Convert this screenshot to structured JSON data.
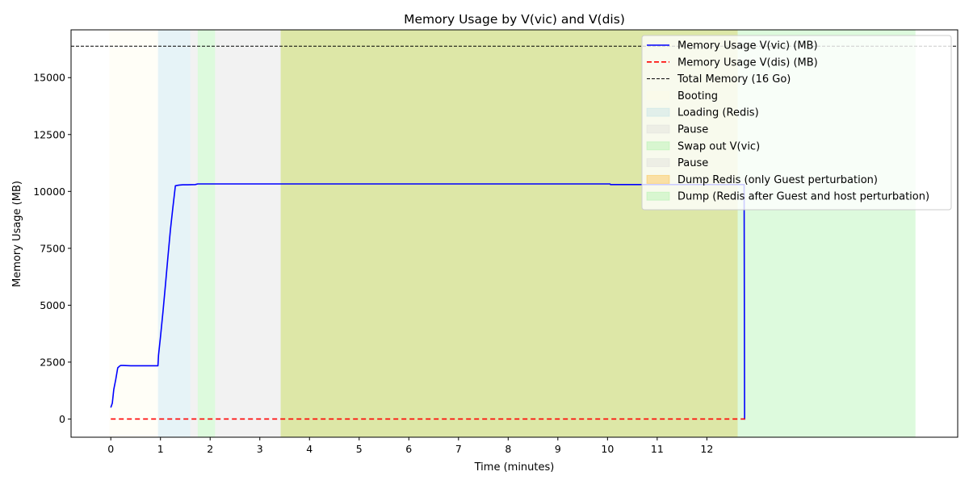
{
  "chart_data": {
    "type": "line",
    "title": "Memory Usage by V(vic) and V(dis)",
    "xlabel": "Time (minutes)",
    "ylabel": "Memory Usage (MB)",
    "xlim": [
      -0.8,
      17.05
    ],
    "ylim": [
      -800,
      17100
    ],
    "xticks": [
      0,
      1,
      2,
      3,
      4,
      5,
      6,
      7,
      8,
      9,
      10,
      11,
      12
    ],
    "xtick_labels": [
      "0",
      "1",
      "2",
      "3",
      "4",
      "5",
      "6",
      "7",
      "8",
      "9",
      "10",
      "11",
      "12"
    ],
    "yticks": [
      0,
      2500,
      5000,
      7500,
      10000,
      12500,
      15000
    ],
    "ytick_labels": [
      "0",
      "2500",
      "5000",
      "7500",
      "10000",
      "12500",
      "15000"
    ],
    "legend_position": "top-right",
    "grid": false,
    "series": [
      {
        "name": "Memory Usage V(vic) (MB)",
        "color": "#0000ff",
        "style": "solid",
        "x": [
          0,
          0.03,
          0.06,
          0.1,
          0.14,
          0.18,
          0.2,
          0.25,
          0.4,
          0.6,
          0.95,
          0.96,
          1.0,
          1.05,
          1.1,
          1.15,
          1.2,
          1.25,
          1.3,
          1.35,
          1.38,
          1.45,
          1.55,
          1.7,
          1.75,
          2.0,
          5.0,
          8.0,
          10.05,
          10.06,
          11.0,
          12.5,
          12.75,
          12.76,
          12.77
        ],
        "y": [
          500,
          700,
          1300,
          1750,
          2250,
          2330,
          2350,
          2350,
          2340,
          2340,
          2340,
          2800,
          3600,
          4700,
          5900,
          7100,
          8300,
          9300,
          10250,
          10270,
          10280,
          10290,
          10290,
          10300,
          10330,
          10330,
          10330,
          10330,
          10330,
          10300,
          10300,
          10300,
          10300,
          0,
          0
        ]
      },
      {
        "name": "Memory Usage V(dis) (MB)",
        "color": "#ff0000",
        "style": "dashed",
        "x": [
          0,
          12.77
        ],
        "y": [
          0,
          0
        ]
      },
      {
        "name": "Total Memory (16 Go)",
        "color": "#000000",
        "style": "dashed-thin",
        "hline": 16384
      }
    ],
    "regions": [
      {
        "name": "Booting",
        "x0": -0.03,
        "x1": 0.95,
        "color": "#fffde6"
      },
      {
        "name": "Loading (Redis)",
        "x0": 0.95,
        "x1": 1.6,
        "color": "#add8e6"
      },
      {
        "name": "Pause",
        "x0": 1.6,
        "x1": 1.75,
        "color": "#d3d3d3"
      },
      {
        "name": "Swap out V(vic)",
        "x0": 1.75,
        "x1": 2.1,
        "color": "#90ee90"
      },
      {
        "name": "Pause",
        "x0": 2.1,
        "x1": 3.42,
        "color": "#d3d3d3"
      },
      {
        "name": "Dump Redis (only Guest perturbation)",
        "x0": 3.42,
        "x1": 12.62,
        "color": "#ffa500"
      },
      {
        "name": "Dump (Redis after Guest and host perturbation)",
        "x0": 3.42,
        "x1": 16.2,
        "color": "#90ee90"
      }
    ]
  }
}
